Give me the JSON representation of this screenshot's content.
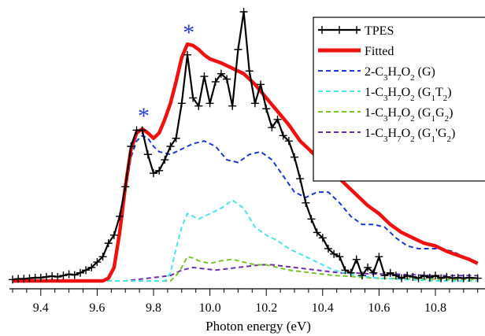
{
  "chart_data": {
    "type": "line",
    "xlabel": "Photon energy (eV)",
    "ylabel": "",
    "xlim": [
      9.3,
      10.95
    ],
    "ylim": [
      0,
      1.0
    ],
    "xticks": [
      "9.4",
      "9.6",
      "9.8",
      "10.0",
      "10.2",
      "10.4",
      "10.6",
      "10.8"
    ],
    "legend_placement": "top-right",
    "annotations": [
      {
        "text": "*",
        "x": 9.765,
        "y": 0.585
      },
      {
        "text": "*",
        "x": 9.925,
        "y": 0.895
      }
    ],
    "series": [
      {
        "name": "TPES",
        "color": "#000000",
        "style": "line-markers",
        "x": [
          9.3,
          9.32,
          9.34,
          9.36,
          9.38,
          9.4,
          9.42,
          9.44,
          9.46,
          9.48,
          9.5,
          9.52,
          9.54,
          9.56,
          9.58,
          9.6,
          9.62,
          9.64,
          9.66,
          9.68,
          9.7,
          9.72,
          9.74,
          9.76,
          9.78,
          9.8,
          9.82,
          9.84,
          9.86,
          9.88,
          9.9,
          9.92,
          9.94,
          9.96,
          9.98,
          10.0,
          10.02,
          10.04,
          10.06,
          10.08,
          10.1,
          10.12,
          10.14,
          10.16,
          10.18,
          10.2,
          10.22,
          10.24,
          10.26,
          10.28,
          10.3,
          10.32,
          10.34,
          10.36,
          10.38,
          10.4,
          10.42,
          10.44,
          10.46,
          10.48,
          10.5,
          10.52,
          10.54,
          10.56,
          10.58,
          10.6,
          10.62,
          10.64,
          10.66,
          10.68,
          10.7,
          10.72,
          10.74,
          10.76,
          10.78,
          10.8,
          10.82,
          10.84,
          10.86,
          10.88,
          10.9,
          10.92,
          10.95
        ],
        "values": [
          0.005,
          0.008,
          0.008,
          0.01,
          0.012,
          0.012,
          0.015,
          0.018,
          0.015,
          0.02,
          0.025,
          0.022,
          0.03,
          0.04,
          0.05,
          0.07,
          0.09,
          0.14,
          0.17,
          0.24,
          0.35,
          0.5,
          0.56,
          0.56,
          0.47,
          0.4,
          0.41,
          0.45,
          0.5,
          0.53,
          0.66,
          0.84,
          0.68,
          0.65,
          0.76,
          0.66,
          0.74,
          0.77,
          0.75,
          0.65,
          0.86,
          1.0,
          0.78,
          0.66,
          0.73,
          0.64,
          0.57,
          0.6,
          0.54,
          0.52,
          0.46,
          0.38,
          0.29,
          0.23,
          0.18,
          0.16,
          0.12,
          0.1,
          0.09,
          0.04,
          0.03,
          0.08,
          0.02,
          0.05,
          0.03,
          0.09,
          0.02,
          0.03,
          0.02,
          0.01,
          0.02,
          0.015,
          0.01,
          0.02,
          0.012,
          0.02,
          0.01,
          0.015,
          0.01,
          0.012,
          0.01,
          0.012,
          0.01
        ]
      },
      {
        "name": "Fitted",
        "color": "#ee1111",
        "style": "solid-thick",
        "x": [
          9.3,
          9.62,
          9.64,
          9.66,
          9.68,
          9.7,
          9.72,
          9.74,
          9.76,
          9.78,
          9.8,
          9.82,
          9.84,
          9.86,
          9.88,
          9.9,
          9.92,
          9.94,
          9.96,
          9.98,
          10.0,
          10.04,
          10.08,
          10.12,
          10.16,
          10.2,
          10.24,
          10.28,
          10.32,
          10.36,
          10.4,
          10.44,
          10.48,
          10.52,
          10.56,
          10.6,
          10.64,
          10.68,
          10.72,
          10.76,
          10.8,
          10.84,
          10.88,
          10.92,
          10.95
        ],
        "values": [
          0.0,
          0.0,
          0.01,
          0.05,
          0.18,
          0.35,
          0.49,
          0.55,
          0.565,
          0.55,
          0.53,
          0.55,
          0.6,
          0.66,
          0.74,
          0.83,
          0.88,
          0.875,
          0.86,
          0.84,
          0.825,
          0.81,
          0.79,
          0.77,
          0.73,
          0.68,
          0.63,
          0.58,
          0.52,
          0.48,
          0.44,
          0.4,
          0.36,
          0.32,
          0.28,
          0.25,
          0.21,
          0.18,
          0.16,
          0.14,
          0.13,
          0.11,
          0.095,
          0.08,
          0.065
        ]
      },
      {
        "name": "2-C3H7O2 (G)",
        "label_parts": [
          [
            "2-C",
            ""
          ],
          [
            "3",
            "sub"
          ],
          [
            "H",
            ""
          ],
          [
            "7",
            "sub"
          ],
          [
            "O",
            ""
          ],
          [
            "2",
            "sub"
          ],
          [
            " (G)",
            ""
          ]
        ],
        "color": "#1a3ac8",
        "style": "dashed",
        "x": [
          9.3,
          9.62,
          9.64,
          9.66,
          9.68,
          9.7,
          9.72,
          9.74,
          9.76,
          9.78,
          9.8,
          9.82,
          9.86,
          9.9,
          9.94,
          9.98,
          10.02,
          10.06,
          10.1,
          10.14,
          10.18,
          10.22,
          10.26,
          10.3,
          10.34,
          10.38,
          10.42,
          10.46,
          10.5,
          10.54,
          10.58,
          10.62,
          10.66,
          10.7,
          10.74,
          10.78,
          10.82,
          10.86,
          10.9,
          10.95
        ],
        "values": [
          0.0,
          0.0,
          0.01,
          0.05,
          0.17,
          0.33,
          0.46,
          0.52,
          0.54,
          0.53,
          0.5,
          0.48,
          0.47,
          0.49,
          0.51,
          0.52,
          0.5,
          0.45,
          0.44,
          0.47,
          0.48,
          0.45,
          0.39,
          0.33,
          0.31,
          0.33,
          0.33,
          0.29,
          0.24,
          0.21,
          0.21,
          0.2,
          0.16,
          0.13,
          0.12,
          0.12,
          0.12,
          0.11,
          0.09,
          0.07
        ]
      },
      {
        "name": "1-C3H7O2 (G1T2)",
        "label_parts": [
          [
            "1-C",
            ""
          ],
          [
            "3",
            "sub"
          ],
          [
            "H",
            ""
          ],
          [
            "7",
            "sub"
          ],
          [
            "O",
            ""
          ],
          [
            "2",
            "sub"
          ],
          [
            " (G",
            ""
          ],
          [
            "1",
            "sub"
          ],
          [
            "T",
            ""
          ],
          [
            "2",
            "sub"
          ],
          [
            ")",
            ""
          ]
        ],
        "color": "#4ce3e8",
        "style": "dashed",
        "x": [
          9.3,
          9.84,
          9.86,
          9.88,
          9.9,
          9.92,
          9.94,
          9.96,
          10.0,
          10.04,
          10.08,
          10.12,
          10.16,
          10.2,
          10.24,
          10.28,
          10.32,
          10.36,
          10.4,
          10.44,
          10.48,
          10.52,
          10.56,
          10.6,
          10.7,
          10.8,
          10.95
        ],
        "values": [
          0.0,
          0.0,
          0.03,
          0.12,
          0.2,
          0.25,
          0.24,
          0.23,
          0.25,
          0.27,
          0.3,
          0.27,
          0.2,
          0.17,
          0.15,
          0.12,
          0.1,
          0.08,
          0.06,
          0.04,
          0.03,
          0.02,
          0.015,
          0.01,
          0.005,
          0.0,
          0.0
        ]
      },
      {
        "name": "1-C3H7O2 (G1G2)",
        "label_parts": [
          [
            "1-C",
            ""
          ],
          [
            "3",
            "sub"
          ],
          [
            "H",
            ""
          ],
          [
            "7",
            "sub"
          ],
          [
            "O",
            ""
          ],
          [
            "2",
            "sub"
          ],
          [
            " (G",
            ""
          ],
          [
            "1",
            "sub"
          ],
          [
            "G",
            ""
          ],
          [
            "2",
            "sub"
          ],
          [
            ")",
            ""
          ]
        ],
        "color": "#79c22a",
        "style": "dashed",
        "x": [
          9.3,
          9.86,
          9.88,
          9.9,
          9.92,
          9.94,
          9.96,
          10.0,
          10.04,
          10.08,
          10.12,
          10.16,
          10.2,
          10.24,
          10.28,
          10.32,
          10.36,
          10.4,
          10.44,
          10.48,
          10.52,
          10.56,
          10.6,
          10.7,
          10.8,
          10.95
        ],
        "values": [
          0.0,
          0.0,
          0.02,
          0.05,
          0.09,
          0.085,
          0.075,
          0.065,
          0.075,
          0.08,
          0.07,
          0.06,
          0.06,
          0.05,
          0.04,
          0.035,
          0.03,
          0.025,
          0.02,
          0.018,
          0.015,
          0.012,
          0.01,
          0.008,
          0.005,
          0.005
        ]
      },
      {
        "name": "1-C3H7O2 (G1'G2)",
        "label_parts": [
          [
            "1-C",
            ""
          ],
          [
            "3",
            "sub"
          ],
          [
            "H",
            ""
          ],
          [
            "7",
            "sub"
          ],
          [
            "O",
            ""
          ],
          [
            "2",
            "sub"
          ],
          [
            " (G",
            ""
          ],
          [
            "1",
            "sub"
          ],
          [
            "'G",
            ""
          ],
          [
            "2",
            "sub"
          ],
          [
            ")",
            ""
          ]
        ],
        "color": "#6a2fa8",
        "style": "dashed",
        "x": [
          9.3,
          9.7,
          9.74,
          9.78,
          9.82,
          9.86,
          9.9,
          9.94,
          9.98,
          10.02,
          10.06,
          10.1,
          10.14,
          10.18,
          10.22,
          10.26,
          10.3,
          10.34,
          10.38,
          10.42,
          10.46,
          10.5,
          10.54,
          10.58,
          10.62,
          10.66,
          10.7,
          10.74,
          10.78,
          10.82,
          10.86,
          10.9,
          10.95
        ],
        "values": [
          0.0,
          0.0,
          0.005,
          0.01,
          0.015,
          0.02,
          0.04,
          0.05,
          0.045,
          0.04,
          0.045,
          0.05,
          0.055,
          0.06,
          0.06,
          0.055,
          0.05,
          0.045,
          0.04,
          0.035,
          0.03,
          0.03,
          0.028,
          0.026,
          0.025,
          0.025,
          0.023,
          0.022,
          0.02,
          0.02,
          0.02,
          0.02,
          0.02
        ]
      }
    ]
  }
}
